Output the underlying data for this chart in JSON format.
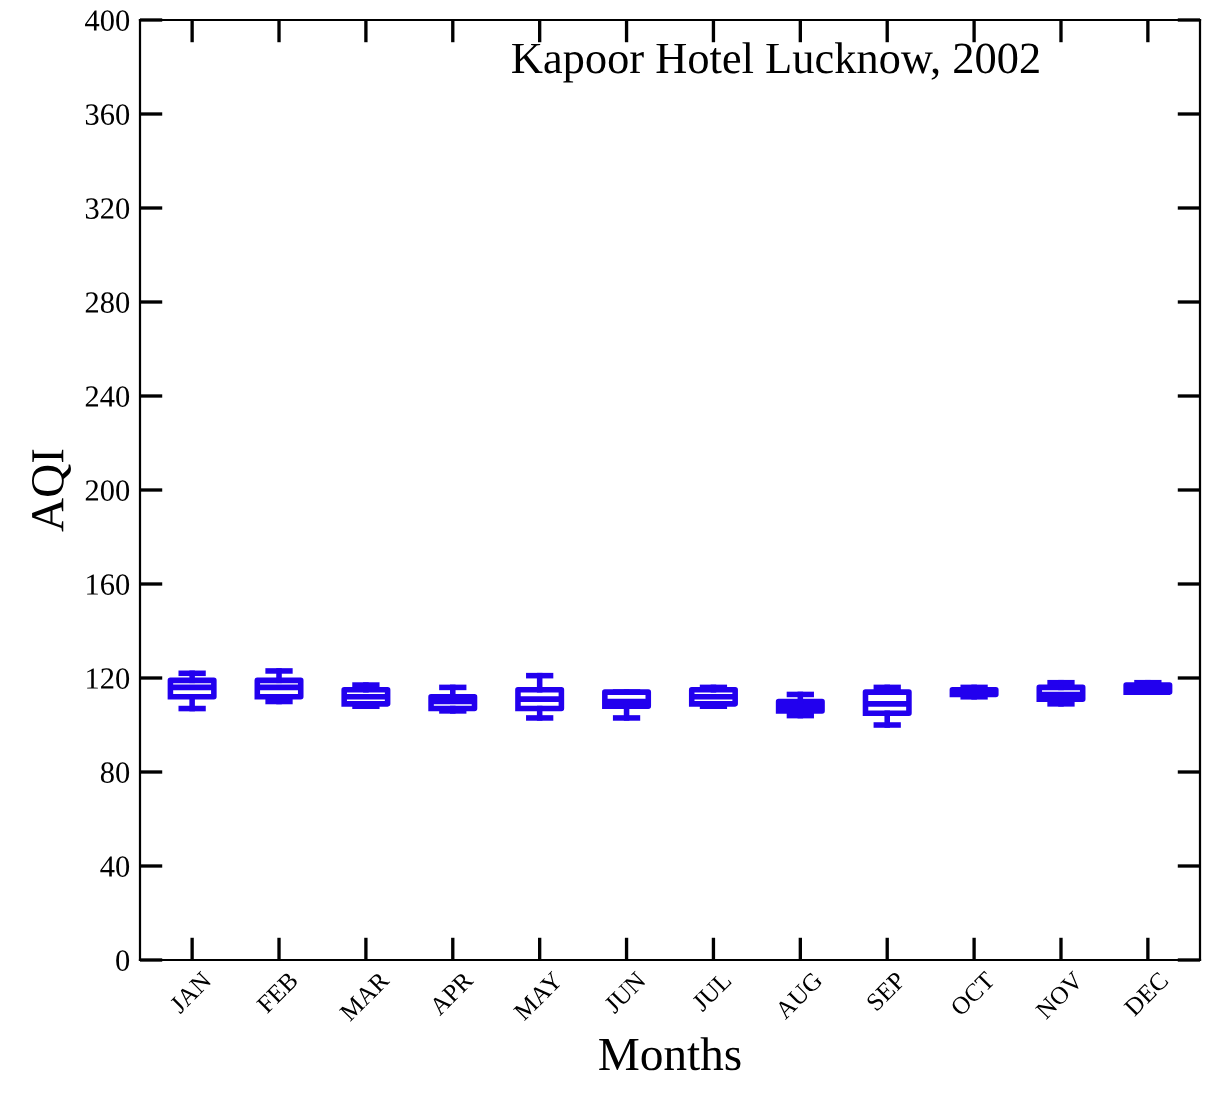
{
  "chart_data": {
    "type": "box",
    "title": "Kapoor Hotel Lucknow, 2002",
    "xlabel": "Months",
    "ylabel": "AQI",
    "color": "#2200ee",
    "categories": [
      "JAN",
      "FEB",
      "MAR",
      "APR",
      "MAY",
      "JUN",
      "JUL",
      "AUG",
      "SEP",
      "OCT",
      "NOV",
      "DEC"
    ],
    "boxes": [
      {
        "low": 107,
        "q1": 112,
        "median": 116,
        "q3": 119,
        "high": 122
      },
      {
        "low": 110,
        "q1": 112,
        "median": 116,
        "q3": 119,
        "high": 123
      },
      {
        "low": 108,
        "q1": 109,
        "median": 112,
        "q3": 115,
        "high": 117
      },
      {
        "low": 106,
        "q1": 107,
        "median": 110,
        "q3": 112,
        "high": 116
      },
      {
        "low": 103,
        "q1": 107,
        "median": 111,
        "q3": 115,
        "high": 121
      },
      {
        "low": 103,
        "q1": 108,
        "median": 110,
        "q3": 114,
        "high": 114
      },
      {
        "low": 108,
        "q1": 109,
        "median": 112,
        "q3": 115,
        "high": 116
      },
      {
        "low": 104,
        "q1": 106,
        "median": 108,
        "q3": 110,
        "high": 113
      },
      {
        "low": 100,
        "q1": 105,
        "median": 109,
        "q3": 114,
        "high": 116
      },
      {
        "low": 112,
        "q1": 113,
        "median": 114,
        "q3": 115,
        "high": 116
      },
      {
        "low": 109,
        "q1": 111,
        "median": 113,
        "q3": 116,
        "high": 118
      },
      {
        "low": 114,
        "q1": 114,
        "median": 116,
        "q3": 117,
        "high": 118
      }
    ],
    "ylim": [
      0,
      400
    ],
    "yticks": [
      0,
      40,
      80,
      120,
      160,
      200,
      240,
      280,
      320,
      360,
      400
    ],
    "grid": false
  }
}
